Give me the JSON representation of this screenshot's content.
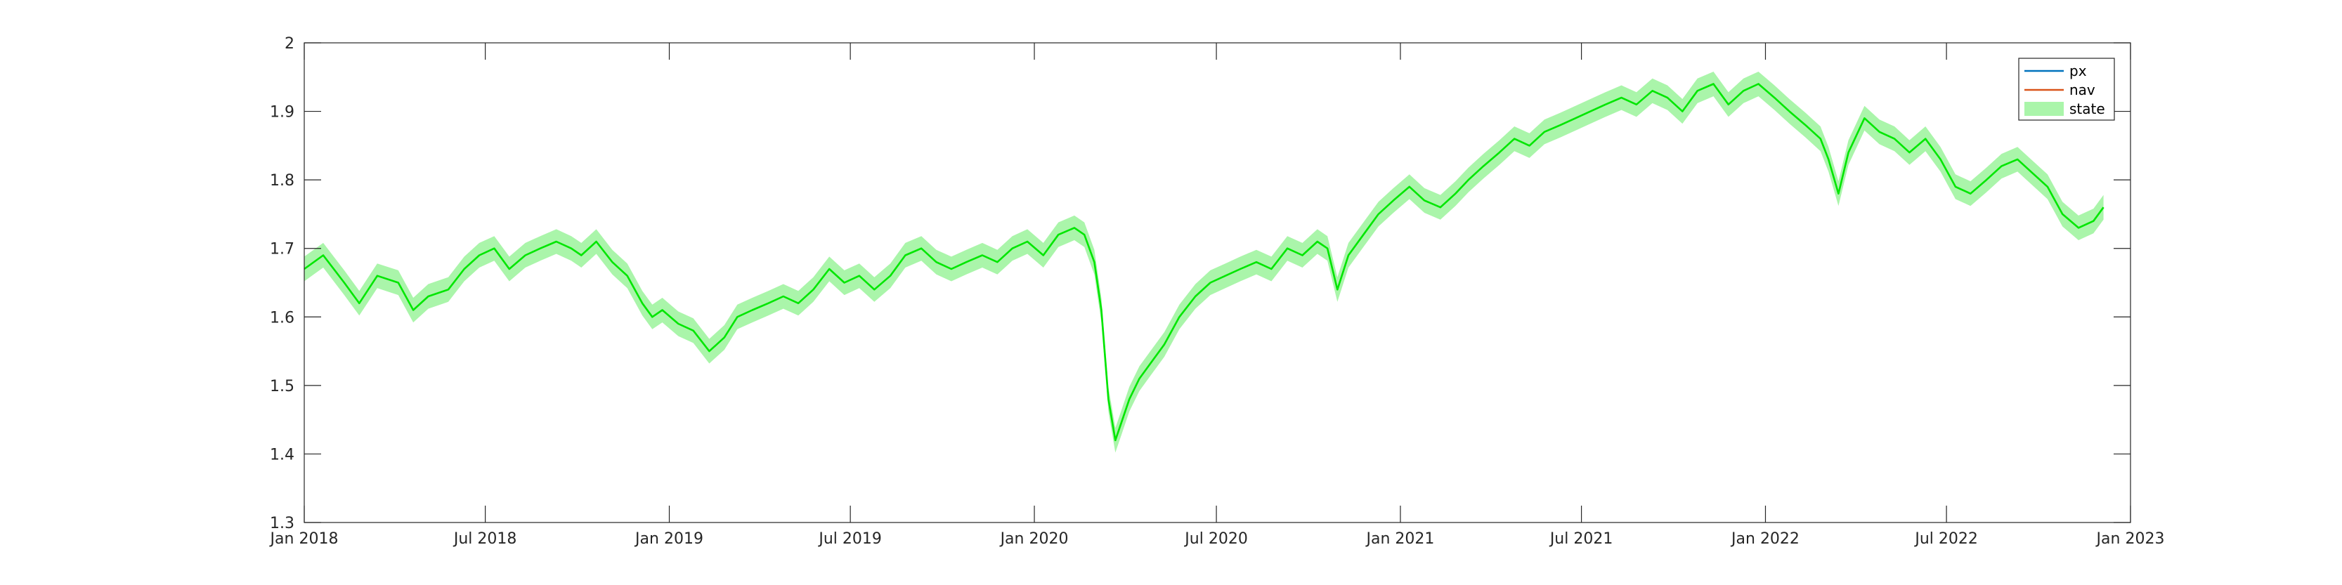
{
  "chart_data": {
    "type": "line",
    "title": "",
    "xlabel": "",
    "ylabel": "",
    "xlim": [
      "2018-01-01",
      "2023-01-01"
    ],
    "ylim": [
      1.3,
      2.0
    ],
    "x_tick_labels": [
      "Jan 2018",
      "Jul 2018",
      "Jan 2019",
      "Jul 2019",
      "Jan 2020",
      "Jul 2020",
      "Jan 2021",
      "Jul 2021",
      "Jan 2022",
      "Jul 2022",
      "Jan 2023"
    ],
    "x_tick_dates": [
      "2018-01-01",
      "2018-07-01",
      "2019-01-01",
      "2019-07-01",
      "2020-01-01",
      "2020-07-01",
      "2021-01-01",
      "2021-07-01",
      "2022-01-01",
      "2022-07-01",
      "2023-01-01"
    ],
    "y_ticks": [
      1.3,
      1.4,
      1.5,
      1.6,
      1.7,
      1.8,
      1.9,
      2.0
    ],
    "y_tick_labels": [
      "1.3",
      "1.4",
      "1.5",
      "1.6",
      "1.7",
      "1.8",
      "1.9",
      "2"
    ],
    "grid": false,
    "legend_position": "top-right",
    "series": [
      {
        "name": "px",
        "style": "line",
        "color": "#0072BD",
        "values": []
      },
      {
        "name": "nav",
        "style": "line",
        "color": "#D95319",
        "values": []
      },
      {
        "name": "state",
        "style": "line-with-band",
        "line_color": "#00E600",
        "band_color": "#AAF5AA",
        "band_halfwidth": 0.018,
        "x": [
          "2018-01-01",
          "2018-01-20",
          "2018-02-10",
          "2018-02-25",
          "2018-03-15",
          "2018-04-05",
          "2018-04-20",
          "2018-05-05",
          "2018-05-25",
          "2018-06-10",
          "2018-06-25",
          "2018-07-10",
          "2018-07-25",
          "2018-08-10",
          "2018-08-25",
          "2018-09-10",
          "2018-09-25",
          "2018-10-05",
          "2018-10-20",
          "2018-11-05",
          "2018-11-20",
          "2018-12-05",
          "2018-12-15",
          "2018-12-25",
          "2019-01-10",
          "2019-01-25",
          "2019-02-10",
          "2019-02-25",
          "2019-03-10",
          "2019-03-25",
          "2019-04-10",
          "2019-04-25",
          "2019-05-10",
          "2019-05-25",
          "2019-06-10",
          "2019-06-25",
          "2019-07-10",
          "2019-07-25",
          "2019-08-10",
          "2019-08-25",
          "2019-09-10",
          "2019-09-25",
          "2019-10-10",
          "2019-10-25",
          "2019-11-10",
          "2019-11-25",
          "2019-12-10",
          "2019-12-25",
          "2020-01-10",
          "2020-01-25",
          "2020-02-10",
          "2020-02-20",
          "2020-03-01",
          "2020-03-08",
          "2020-03-15",
          "2020-03-22",
          "2020-03-29",
          "2020-04-05",
          "2020-04-15",
          "2020-04-25",
          "2020-05-10",
          "2020-05-25",
          "2020-06-10",
          "2020-06-25",
          "2020-07-10",
          "2020-07-25",
          "2020-08-10",
          "2020-08-25",
          "2020-09-10",
          "2020-09-25",
          "2020-10-10",
          "2020-10-20",
          "2020-10-30",
          "2020-11-10",
          "2020-11-25",
          "2020-12-10",
          "2020-12-25",
          "2021-01-10",
          "2021-01-25",
          "2021-02-10",
          "2021-02-25",
          "2021-03-10",
          "2021-03-25",
          "2021-04-10",
          "2021-04-25",
          "2021-05-10",
          "2021-05-25",
          "2021-06-10",
          "2021-06-25",
          "2021-07-10",
          "2021-07-25",
          "2021-08-10",
          "2021-08-25",
          "2021-09-10",
          "2021-09-25",
          "2021-10-10",
          "2021-10-25",
          "2021-11-10",
          "2021-11-25",
          "2021-12-10",
          "2021-12-25",
          "2022-01-10",
          "2022-01-25",
          "2022-02-10",
          "2022-02-25",
          "2022-03-05",
          "2022-03-15",
          "2022-03-25",
          "2022-04-10",
          "2022-04-25",
          "2022-05-10",
          "2022-05-25",
          "2022-06-10",
          "2022-06-25",
          "2022-07-10",
          "2022-07-25",
          "2022-08-10",
          "2022-08-25",
          "2022-09-10",
          "2022-09-25",
          "2022-10-10",
          "2022-10-25",
          "2022-11-10",
          "2022-11-25",
          "2022-12-05"
        ],
        "values": [
          1.67,
          1.69,
          1.65,
          1.62,
          1.66,
          1.65,
          1.61,
          1.63,
          1.64,
          1.67,
          1.69,
          1.7,
          1.67,
          1.69,
          1.7,
          1.71,
          1.7,
          1.69,
          1.71,
          1.68,
          1.66,
          1.62,
          1.6,
          1.61,
          1.59,
          1.58,
          1.55,
          1.57,
          1.6,
          1.61,
          1.62,
          1.63,
          1.62,
          1.64,
          1.67,
          1.65,
          1.66,
          1.64,
          1.66,
          1.69,
          1.7,
          1.68,
          1.67,
          1.68,
          1.69,
          1.68,
          1.7,
          1.71,
          1.69,
          1.72,
          1.73,
          1.72,
          1.68,
          1.61,
          1.48,
          1.42,
          1.45,
          1.48,
          1.51,
          1.53,
          1.56,
          1.6,
          1.63,
          1.65,
          1.66,
          1.67,
          1.68,
          1.67,
          1.7,
          1.69,
          1.71,
          1.7,
          1.64,
          1.69,
          1.72,
          1.75,
          1.77,
          1.79,
          1.77,
          1.76,
          1.78,
          1.8,
          1.82,
          1.84,
          1.86,
          1.85,
          1.87,
          1.88,
          1.89,
          1.9,
          1.91,
          1.92,
          1.91,
          1.93,
          1.92,
          1.9,
          1.93,
          1.94,
          1.91,
          1.93,
          1.94,
          1.92,
          1.9,
          1.88,
          1.86,
          1.83,
          1.78,
          1.84,
          1.89,
          1.87,
          1.86,
          1.84,
          1.86,
          1.83,
          1.79,
          1.78,
          1.8,
          1.82,
          1.83,
          1.81,
          1.79,
          1.75,
          1.73,
          1.74,
          1.76
        ]
      }
    ]
  }
}
